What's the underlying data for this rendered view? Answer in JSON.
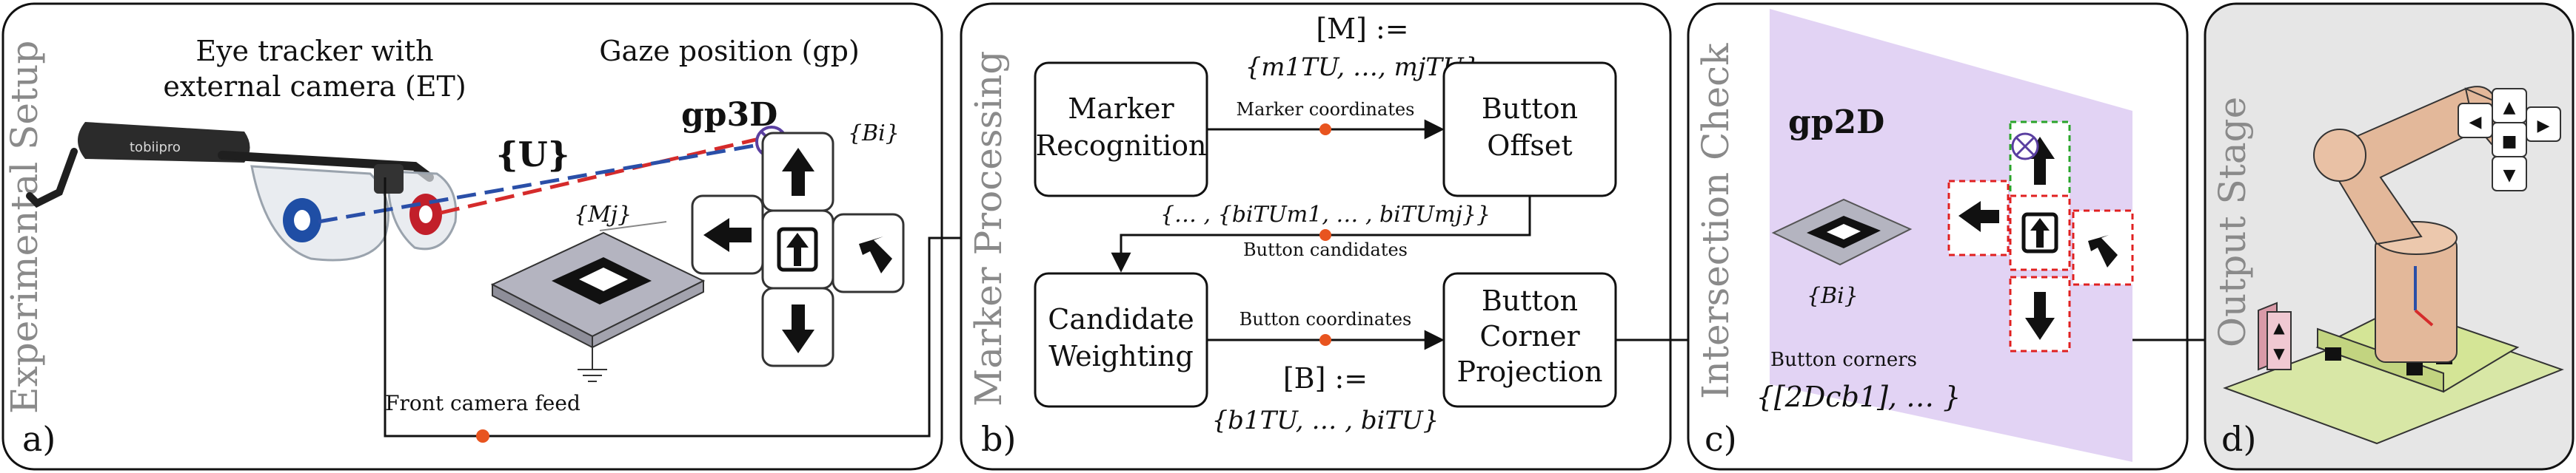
{
  "panels": {
    "a": {
      "side_label": "Experimental Setup",
      "letter": "a)",
      "et_label_line1": "Eye tracker with",
      "et_label_line2": "external camera (ET)",
      "brand": "tobiipro",
      "gaze_title": "Gaze position (gp)",
      "gp3d": "gp3D",
      "frame_u": "{U}",
      "bi": "{Bi}",
      "mj": "{Mj}",
      "front_feed": "Front camera feed"
    },
    "b": {
      "side_label": "Marker Processing",
      "letter": "b)",
      "m_def_line1": "[M] :=",
      "m_def_line2": "{m1TU, …, mjTU}",
      "box_marker_recognition": [
        "Marker",
        "Recognition"
      ],
      "box_button_offset": [
        "Button",
        "Offset"
      ],
      "box_candidate_weighting": [
        "Candidate",
        "Weighting"
      ],
      "box_corner_projection": [
        "Button",
        "Corner",
        "Projection"
      ],
      "edge_marker_coords": "Marker coordinates",
      "edge_button_candidates_set": "{… , {biTUm1, … , biTUmj}}",
      "edge_button_candidates": "Button candidates",
      "edge_button_coords": "Button coordinates",
      "b_def_line1": "[B] :=",
      "b_def_line2": "{b1TU, … , biTU}"
    },
    "c": {
      "side_label": "Intersection Check",
      "letter": "c)",
      "gp2d": "gp2D",
      "bi": "{Bi}",
      "button_corners": "Button corners",
      "corners_set": "{[2Dcb1], … }"
    },
    "d": {
      "side_label": "Output Stage",
      "letter": "d)"
    }
  },
  "colors": {
    "panel_d_bg": "#e6e6e6",
    "projection_plane": "#e2d3f4",
    "connector_dot": "#e8541f",
    "gaze_red": "#d52b2b",
    "gaze_blue": "#2a4fa8",
    "robot": "#e3b89a",
    "base_green": "#d8e7a6",
    "button_outline_red": "#e02020",
    "button_outline_green": "#2aa52a"
  }
}
